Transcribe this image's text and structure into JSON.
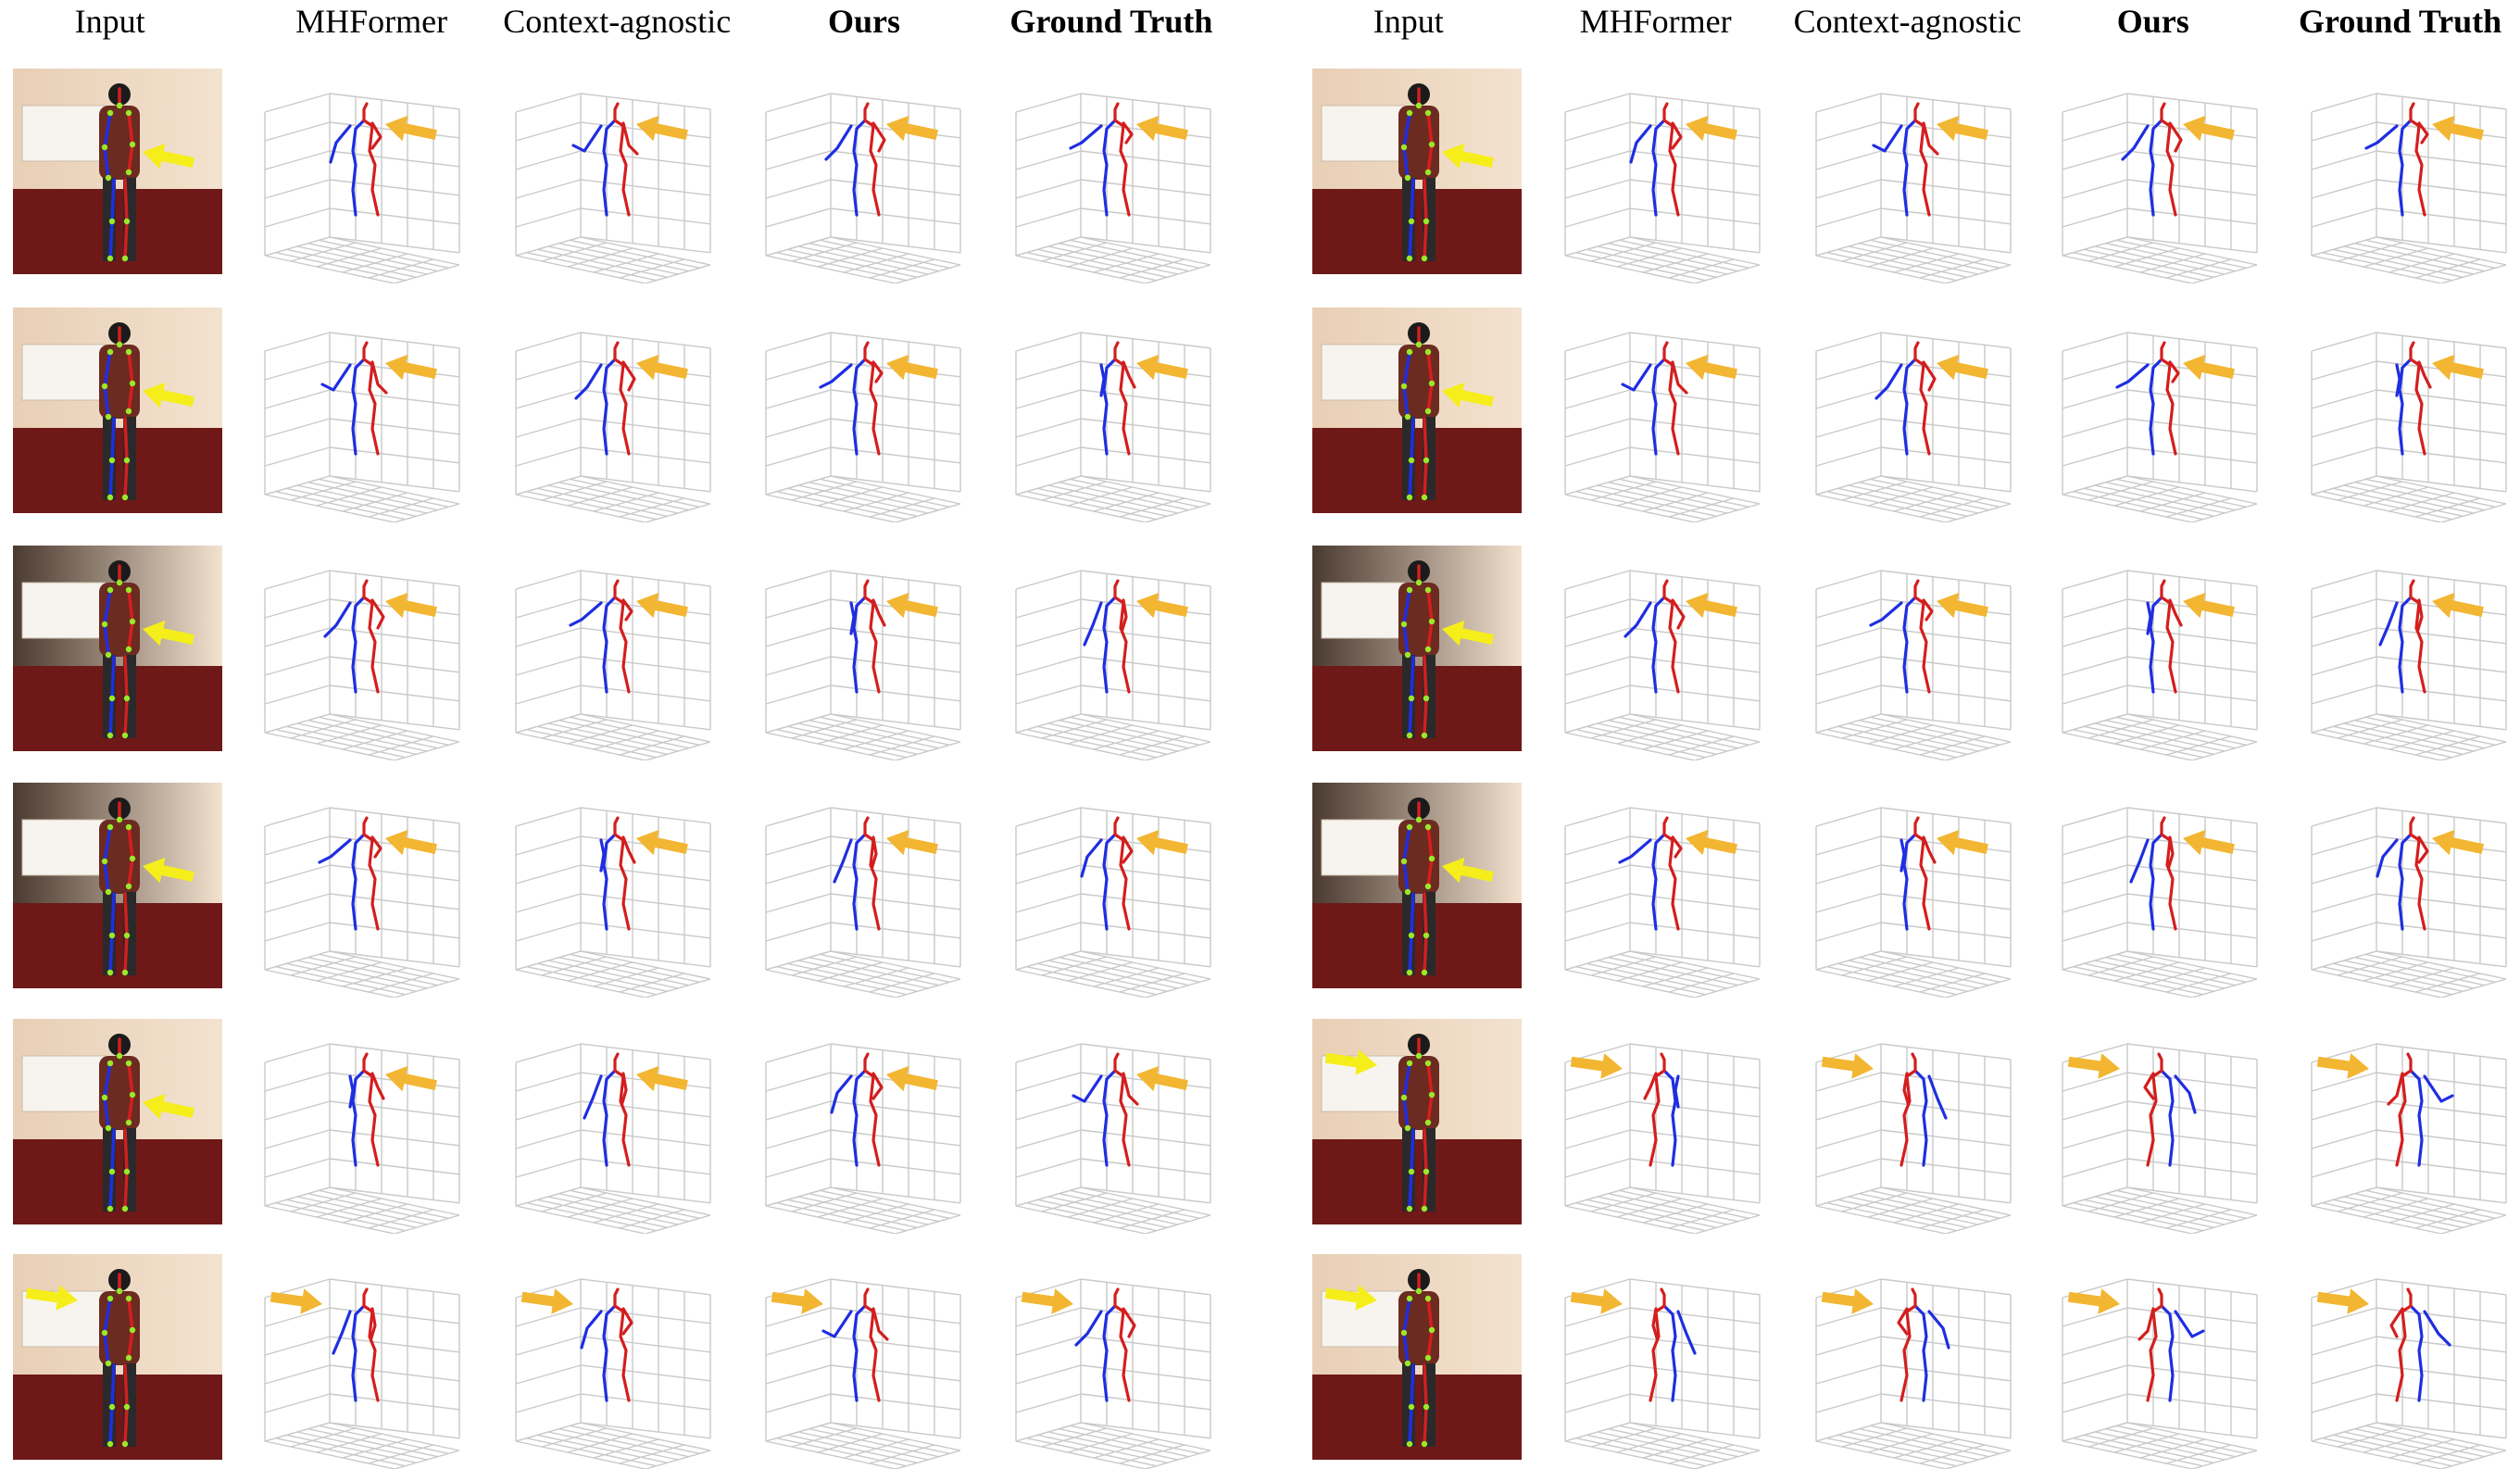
{
  "figure": {
    "column_headers": [
      "Input",
      "MHFormer",
      "Context-agnostic",
      "Ours",
      "Ground Truth"
    ],
    "bold_headers": [
      "Ours",
      "Ground Truth"
    ],
    "groups": 2,
    "rows_per_group": 6
  },
  "colors": {
    "left_limbs": "#1f2ee0",
    "right_limbs": "#d41e1e",
    "arrow_plot": "#f2b632",
    "arrow_photo": "#f5ee1a",
    "grid": "#c9c9c9",
    "wall": "#f3e2cf",
    "floor": "#6e1818",
    "joint": "#9be82a"
  },
  "icons": {
    "photo_arrow": "yellow-arrow-icon",
    "plot_arrow": "orange-arrow-icon"
  }
}
